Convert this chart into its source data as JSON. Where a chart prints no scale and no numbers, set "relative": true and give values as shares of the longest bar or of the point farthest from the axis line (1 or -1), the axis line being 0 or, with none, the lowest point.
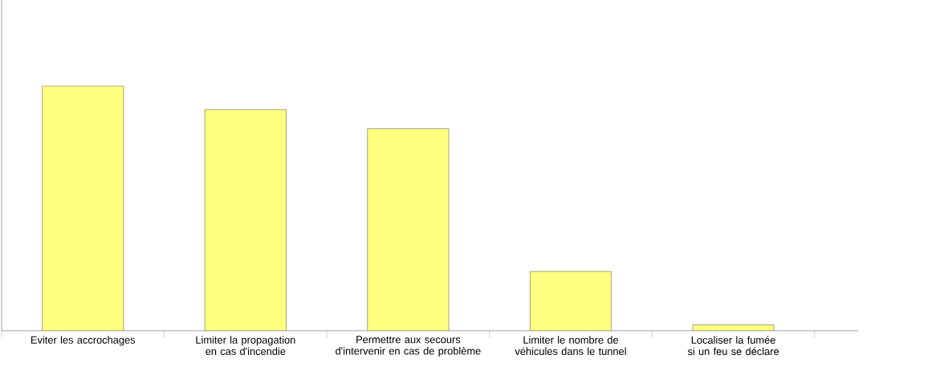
{
  "chart_data": {
    "type": "bar",
    "relative": true,
    "color": "#ffff80",
    "categories": [
      "Eviter les accrochages",
      "Limiter la propagation en cas d'incendie",
      "Permettre aux secours d'intervenir en cas de problème",
      "Limiter le nombre de véhicules dans le tunnel",
      "Localiser la fumée si un feu se déclare"
    ],
    "values": [
      1,
      0.903,
      0.825,
      0.242,
      0.024
    ]
  }
}
